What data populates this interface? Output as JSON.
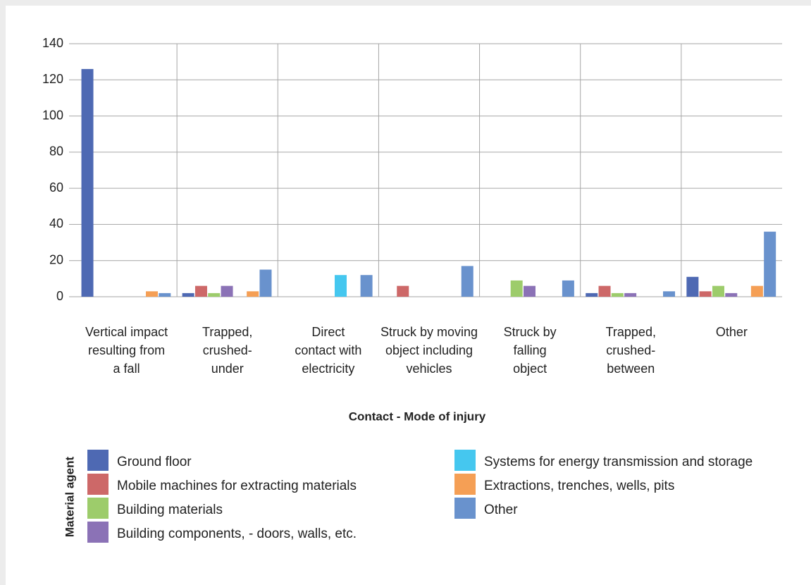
{
  "chart_data": {
    "type": "bar",
    "x_label": "Contact - Mode of injury",
    "legend_title": "Material agent",
    "categories": [
      "Vertical impact\nresulting from\na fall",
      "Trapped,\ncrushed-\nunder",
      "Direct\ncontact with\nelectricity",
      "Struck by moving\nobject including\nvehicles",
      "Struck by\nfalling\nobject",
      "Trapped,\ncrushed-\nbetween",
      "Other"
    ],
    "series": [
      {
        "name": "Ground floor",
        "color": "#4e69b3",
        "values": [
          126,
          2,
          0,
          0,
          0,
          2,
          11
        ]
      },
      {
        "name": "Mobile machines for extracting materials",
        "color": "#cd6868",
        "values": [
          0,
          6,
          0,
          6,
          0,
          6,
          3
        ]
      },
      {
        "name": "Building materials",
        "color": "#9dcc6b",
        "values": [
          0,
          2,
          0,
          0,
          9,
          2,
          6
        ]
      },
      {
        "name": "Building components, - doors, walls, etc.",
        "color": "#8b72b6",
        "values": [
          0,
          6,
          0,
          0,
          6,
          2,
          2
        ]
      },
      {
        "name": "Systems for energy transmission and storage",
        "color": "#45c7ef",
        "values": [
          0,
          0,
          12,
          0,
          0,
          0,
          0
        ]
      },
      {
        "name": "Extractions, trenches, wells, pits",
        "color": "#f59f55",
        "values": [
          3,
          3,
          0,
          0,
          0,
          0,
          6
        ]
      },
      {
        "name": "Other",
        "color": "#6992cd",
        "values": [
          2,
          15,
          12,
          17,
          9,
          3,
          36
        ]
      }
    ],
    "ylim": [
      0,
      140
    ],
    "yticks": [
      0,
      20,
      40,
      60,
      80,
      100,
      120,
      140
    ],
    "grid": true
  }
}
